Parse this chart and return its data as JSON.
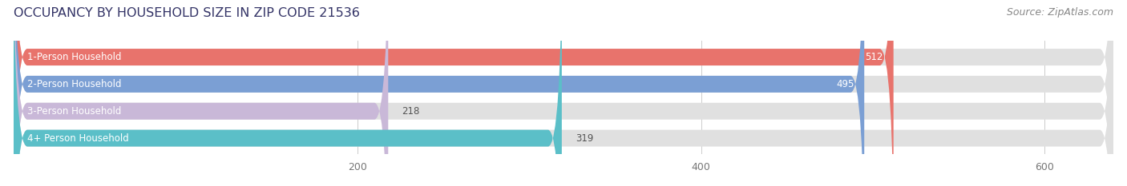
{
  "title": "OCCUPANCY BY HOUSEHOLD SIZE IN ZIP CODE 21536",
  "source": "Source: ZipAtlas.com",
  "categories": [
    "1-Person Household",
    "2-Person Household",
    "3-Person Household",
    "4+ Person Household"
  ],
  "values": [
    512,
    495,
    218,
    319
  ],
  "bar_colors": [
    "#e8736c",
    "#7b9fd4",
    "#c9b8d8",
    "#5bbfc8"
  ],
  "xlim_max": 640,
  "xticks": [
    200,
    400,
    600
  ],
  "title_color": "#333366",
  "title_fontsize": 11.5,
  "source_color": "#888888",
  "source_fontsize": 9,
  "bar_height": 0.62,
  "bar_bg_color": "#e0e0e0",
  "value_threshold": 400
}
